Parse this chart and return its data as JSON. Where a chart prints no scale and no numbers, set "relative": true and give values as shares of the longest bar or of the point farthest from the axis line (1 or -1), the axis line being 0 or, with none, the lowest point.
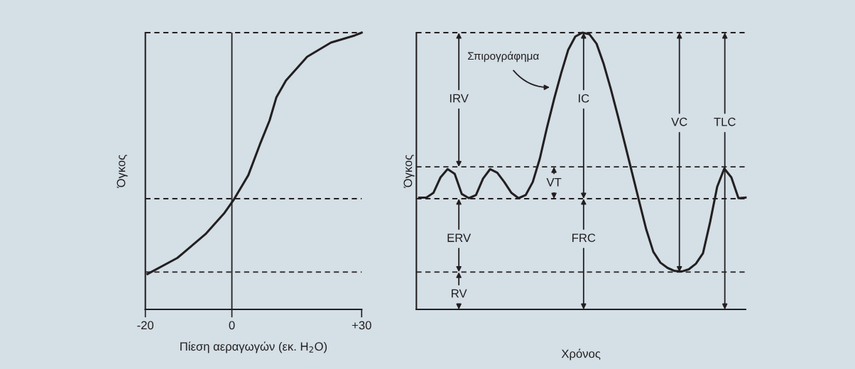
{
  "chart_data": [
    {
      "type": "line",
      "xlabel": "Πίεση αεραγωγών (εκ. H$_{2}$O)",
      "ylabel": "Όγκος",
      "relative": true,
      "series": [
        {
          "color": "#231f20",
          "x": [
            -19.5,
            -12.6,
            -6.1,
            -1.7,
            0.5,
            3.8,
            6.5,
            8.7,
            10.3,
            12.5,
            17.4,
            22.9,
            28.4,
            30
          ],
          "values": [
            0.128,
            0.186,
            0.272,
            0.349,
            0.398,
            0.485,
            0.597,
            0.682,
            0.767,
            0.827,
            0.913,
            0.964,
            0.99,
            1.0
          ]
        }
      ],
      "xlim": [
        -20,
        30
      ],
      "xticks": [
        -20,
        0,
        {
          "value": 30,
          "label": "+30"
        }
      ],
      "tick_labels": "x",
      "ref_lines": [
        {
          "axis": "y",
          "value": 1.0,
          "line_style": "dashed"
        },
        {
          "axis": "y",
          "value": 0.4,
          "line_style": "dashed"
        },
        {
          "axis": "y",
          "value": 0.135,
          "line_style": "dashed"
        },
        {
          "axis": "x",
          "value": 0,
          "line_style": "solid"
        }
      ],
      "marker": "none",
      "line_style": "solid",
      "grid": false,
      "legend": false
    },
    {
      "type": "line",
      "xlabel": "Χρόνος",
      "ylabel": "Όγκος",
      "relative": true,
      "categories": [
        null,
        null,
        null,
        null,
        null,
        null,
        null,
        null,
        null,
        null,
        null,
        null,
        null,
        null,
        null,
        null,
        null,
        null,
        null,
        null,
        null,
        null,
        null,
        null,
        null,
        null,
        null,
        null,
        null,
        null,
        null,
        null,
        null,
        null,
        null,
        null,
        null,
        null,
        null,
        null,
        null,
        null,
        null,
        null,
        null,
        null,
        null
      ],
      "series": [
        {
          "color": "#231f20",
          "values": [
            0.404,
            0.404,
            0.421,
            0.477,
            0.507,
            0.49,
            0.417,
            0.402,
            0.413,
            0.473,
            0.507,
            0.494,
            0.46,
            0.421,
            0.402,
            0.413,
            0.46,
            0.545,
            0.656,
            0.759,
            0.853,
            0.938,
            0.986,
            1.0,
            0.994,
            0.96,
            0.887,
            0.797,
            0.699,
            0.597,
            0.494,
            0.391,
            0.289,
            0.208,
            0.169,
            0.15,
            0.139,
            0.137,
            0.145,
            0.165,
            0.203,
            0.315,
            0.443,
            0.509,
            0.477,
            0.402,
            0.404
          ]
        }
      ],
      "tick_labels": false,
      "ref_lines": [
        {
          "axis": "y",
          "value": 1.0,
          "line_style": "dashed"
        },
        {
          "axis": "y",
          "value": 0.515,
          "line_style": "dashed"
        },
        {
          "axis": "y",
          "value": 0.4,
          "line_style": "dashed"
        },
        {
          "axis": "y",
          "value": 0.135,
          "line_style": "dashed"
        }
      ],
      "annotations": [
        "IRV",
        "ERV",
        "RV",
        "VT",
        "IC",
        "FRC",
        "VC",
        "TLC",
        "Σπιρογράφημα"
      ],
      "marker": "none",
      "line_style": "solid",
      "grid": false,
      "legend": false
    }
  ]
}
